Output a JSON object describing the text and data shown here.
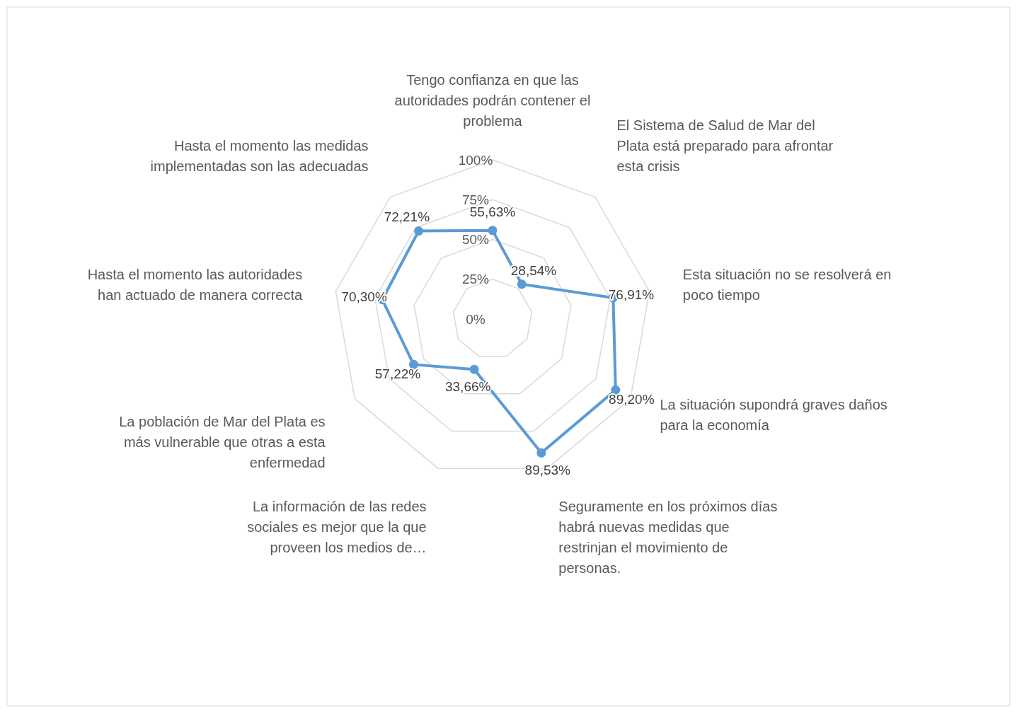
{
  "chart_data": {
    "type": "radar",
    "categories": [
      "Tengo confianza en que las autoridades podrán contener el problema",
      "El Sistema de Salud de Mar del Plata está preparado para afrontar esta crisis",
      "Esta situación no se resolverá en poco tiempo",
      "La situación supondrá graves daños para la economía",
      "Seguramente en los próximos días habrá nuevas medidas que restrinjan el movimiento de personas.",
      "La información de las redes sociales es mejor que la que proveen los medios de…",
      "La población de Mar del Plata es más vulnerable que otras a esta enfermedad",
      "Hasta el momento las autoridades han actuado de manera correcta",
      "Hasta el momento las medidas implementadas son las adecuadas"
    ],
    "series": [
      {
        "color": "#5b9bd5",
        "values": [
          55.63,
          28.54,
          76.91,
          89.2,
          89.53,
          33.66,
          57.22,
          70.3,
          72.21
        ],
        "value_labels": [
          "55,63%",
          "28,54%",
          "76,91%",
          "89,20%",
          "89,53%",
          "33,66%",
          "57,22%",
          "70,30%",
          "72,21%"
        ]
      }
    ],
    "ylim": [
      0,
      100
    ],
    "yticks": [
      {
        "value": 0,
        "label": "0%"
      },
      {
        "value": 25,
        "label": "25%"
      },
      {
        "value": 50,
        "label": "50%"
      },
      {
        "value": 75,
        "label": "75%"
      },
      {
        "value": 100,
        "label": "100%"
      }
    ],
    "grid": true,
    "marker": "circle"
  }
}
